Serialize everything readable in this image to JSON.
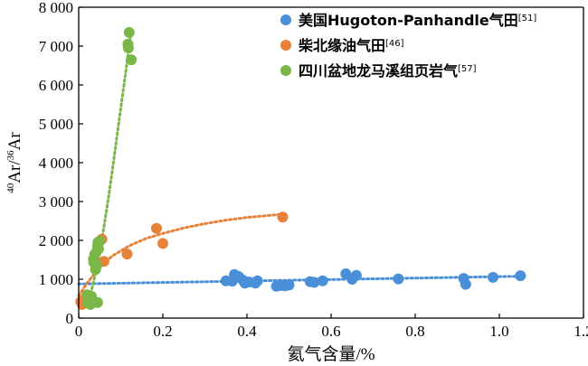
{
  "chart_data": {
    "type": "scatter",
    "xlabel": "氦气含量/%",
    "ylabel": {
      "sup1": "40",
      "part1": "Ar/",
      "sup2": "36",
      "part2": "Ar"
    },
    "xlim": [
      0,
      1.2
    ],
    "ylim": [
      0,
      8000
    ],
    "x_ticks": [
      "0",
      "0.2",
      "0.4",
      "0.6",
      "0.8",
      "1.0",
      "1.2"
    ],
    "y_ticks": [
      "0",
      "1 000",
      "2 000",
      "3 000",
      "4 000",
      "5 000",
      "6 000",
      "7 000",
      "8 000"
    ],
    "x_tick_values": [
      0,
      0.2,
      0.4,
      0.6,
      0.8,
      1.0,
      1.2
    ],
    "y_tick_values": [
      0,
      1000,
      2000,
      3000,
      4000,
      5000,
      6000,
      7000,
      8000
    ],
    "grid": false,
    "legend_position": "top-right",
    "series": [
      {
        "name": "美国Hugoton-Panhandle气田",
        "ref": "[51]",
        "color": "#4a90d9",
        "trend": "linear",
        "points": [
          [
            0.35,
            960
          ],
          [
            0.365,
            950
          ],
          [
            0.37,
            1120
          ],
          [
            0.38,
            1070
          ],
          [
            0.39,
            980
          ],
          [
            0.395,
            900
          ],
          [
            0.405,
            930
          ],
          [
            0.42,
            900
          ],
          [
            0.425,
            960
          ],
          [
            0.47,
            820
          ],
          [
            0.48,
            840
          ],
          [
            0.49,
            830
          ],
          [
            0.5,
            850
          ],
          [
            0.55,
            940
          ],
          [
            0.56,
            920
          ],
          [
            0.58,
            960
          ],
          [
            0.635,
            1140
          ],
          [
            0.65,
            1000
          ],
          [
            0.66,
            1100
          ],
          [
            0.76,
            1010
          ],
          [
            0.915,
            1020
          ],
          [
            0.92,
            870
          ],
          [
            0.985,
            1050
          ],
          [
            1.05,
            1090
          ]
        ],
        "trend_x": [
          0.0,
          1.06
        ],
        "trend_y": [
          880,
          1080
        ]
      },
      {
        "name": "柴北缘油气田",
        "ref": "[46]",
        "color": "#e8823a",
        "trend": "curve",
        "points": [
          [
            0.005,
            420
          ],
          [
            0.008,
            350
          ],
          [
            0.015,
            500
          ],
          [
            0.055,
            2030
          ],
          [
            0.06,
            1460
          ],
          [
            0.115,
            1650
          ],
          [
            0.185,
            2310
          ],
          [
            0.2,
            1920
          ],
          [
            0.485,
            2600
          ]
        ],
        "trend_x": [
          0.0,
          0.02,
          0.05,
          0.08,
          0.12,
          0.16,
          0.2,
          0.25,
          0.3,
          0.35,
          0.4,
          0.45,
          0.49
        ],
        "trend_y": [
          580,
          900,
          1320,
          1600,
          1860,
          2050,
          2180,
          2320,
          2430,
          2520,
          2590,
          2640,
          2680
        ]
      },
      {
        "name": "四川盆地龙马溪组页岩气",
        "ref": "[57]",
        "color": "#7ab648",
        "trend": "curve",
        "points": [
          [
            0.02,
            600
          ],
          [
            0.022,
            400
          ],
          [
            0.025,
            500
          ],
          [
            0.028,
            350
          ],
          [
            0.03,
            560
          ],
          [
            0.032,
            450
          ],
          [
            0.035,
            1520
          ],
          [
            0.036,
            1430
          ],
          [
            0.038,
            1640
          ],
          [
            0.04,
            1250
          ],
          [
            0.042,
            1700
          ],
          [
            0.043,
            1350
          ],
          [
            0.045,
            1850
          ],
          [
            0.046,
            1950
          ],
          [
            0.047,
            1780
          ],
          [
            0.05,
            1980
          ],
          [
            0.045,
            400
          ],
          [
            0.117,
            7050
          ],
          [
            0.118,
            6950
          ],
          [
            0.12,
            7350
          ],
          [
            0.125,
            6650
          ]
        ],
        "trend_x": [
          0.02,
          0.03,
          0.04,
          0.05,
          0.06,
          0.07,
          0.08,
          0.09,
          0.1,
          0.11,
          0.12,
          0.125
        ],
        "trend_y": [
          400,
          700,
          1150,
          1700,
          2350,
          3050,
          3800,
          4600,
          5400,
          6200,
          7000,
          7400
        ]
      }
    ]
  }
}
